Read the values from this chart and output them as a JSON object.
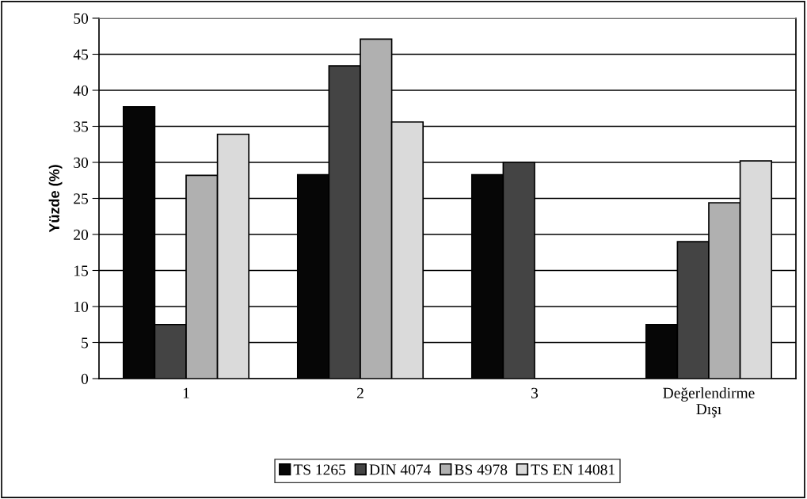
{
  "chart_data": {
    "type": "bar",
    "ylabel": "Yüzde (%)",
    "categories": [
      "1",
      "2",
      "3",
      "Değerlendirme\nDışı"
    ],
    "series": [
      {
        "name": "TS 1265",
        "color": "#060606",
        "values": [
          37.7,
          28.3,
          28.3,
          7.5
        ]
      },
      {
        "name": "DIN 4074",
        "color": "#444444",
        "values": [
          7.5,
          43.4,
          30.0,
          19.0
        ]
      },
      {
        "name": "BS 4978",
        "color": "#b0b0b0",
        "values": [
          28.2,
          47.1,
          null,
          24.4
        ]
      },
      {
        "name": "TS EN 14081",
        "color": "#dadada",
        "values": [
          33.9,
          35.6,
          null,
          30.2
        ]
      }
    ],
    "ylim": [
      0,
      50
    ],
    "yticks": [
      0,
      5,
      10,
      15,
      20,
      25,
      30,
      35,
      40,
      45,
      50
    ],
    "grid": "y",
    "legend": "bottom"
  }
}
